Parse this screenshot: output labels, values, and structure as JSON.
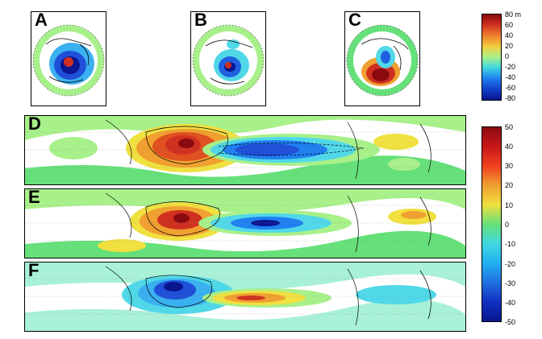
{
  "panels": {
    "a": {
      "label": "A"
    },
    "b": {
      "label": "B"
    },
    "c": {
      "label": "C"
    },
    "d": {
      "label": "D"
    },
    "e": {
      "label": "E"
    },
    "f": {
      "label": "F"
    }
  },
  "colorbar_top": {
    "unit": "m",
    "ticks": [
      "80",
      "60",
      "40",
      "20",
      "0",
      "-20",
      "-40",
      "-60",
      "-80"
    ]
  },
  "colorbar_bottom": {
    "ticks": [
      "50",
      "40",
      "30",
      "20",
      "10",
      "0",
      "-10",
      "-20",
      "-30",
      "-40",
      "-50"
    ]
  },
  "colors": {
    "green": "#66e07a",
    "lightgreen": "#a8f08a",
    "yellow": "#f0e040",
    "orange": "#f0a030",
    "red": "#d03020",
    "darkred": "#8a0a10",
    "cyan": "#50d8e8",
    "blue": "#2060e0",
    "darkblue": "#0a1590"
  }
}
